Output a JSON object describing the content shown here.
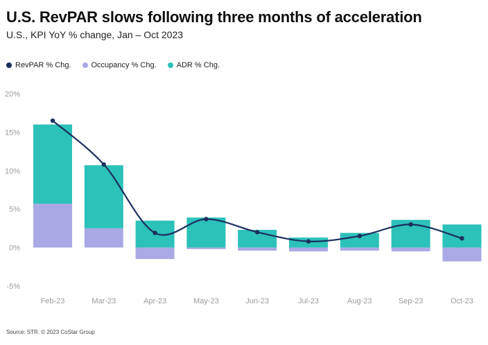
{
  "title": "U.S. RevPAR slows following three months of acceleration",
  "subtitle": "U.S., KPI YoY % change, Jan – Oct 2023",
  "source": "Source: STR. © 2023 CoStar Group",
  "legend": [
    {
      "label": "RevPAR % Chg.",
      "color": "#1c2f5e"
    },
    {
      "label": "Occupancy % Chg.",
      "color": "#aaa9e6"
    },
    {
      "label": "ADR % Chg.",
      "color": "#2cc1b9"
    }
  ],
  "chart_data": {
    "type": "bar",
    "categories": [
      "Feb-23",
      "Mar-23",
      "Apr-23",
      "May-23",
      "Jun-23",
      "Jul-23",
      "Aug-23",
      "Sep-23",
      "Oct-23"
    ],
    "series": [
      {
        "name": "Occupancy % Chg.",
        "kind": "stacked-bar",
        "color": "#aaa9e6",
        "values": [
          5.7,
          2.5,
          -1.5,
          -0.2,
          -0.4,
          -0.5,
          -0.4,
          -0.5,
          -1.8
        ]
      },
      {
        "name": "ADR % Chg.",
        "kind": "stacked-bar",
        "color": "#2cc1b9",
        "values": [
          10.3,
          8.2,
          3.5,
          3.9,
          2.3,
          1.3,
          1.9,
          3.6,
          3.0
        ]
      },
      {
        "name": "RevPAR % Chg.",
        "kind": "line",
        "color": "#1c2f5e",
        "values": [
          16.5,
          10.8,
          1.9,
          3.7,
          2.0,
          0.8,
          1.5,
          3.0,
          1.2
        ]
      }
    ],
    "ylim": [
      -5,
      20
    ],
    "yticks": [
      "-5%",
      "0%",
      "5%",
      "10%",
      "15%",
      "20%"
    ],
    "ytick_values": [
      -5,
      0,
      5,
      10,
      15,
      20
    ],
    "grid": false,
    "legend_position": "top-left"
  }
}
